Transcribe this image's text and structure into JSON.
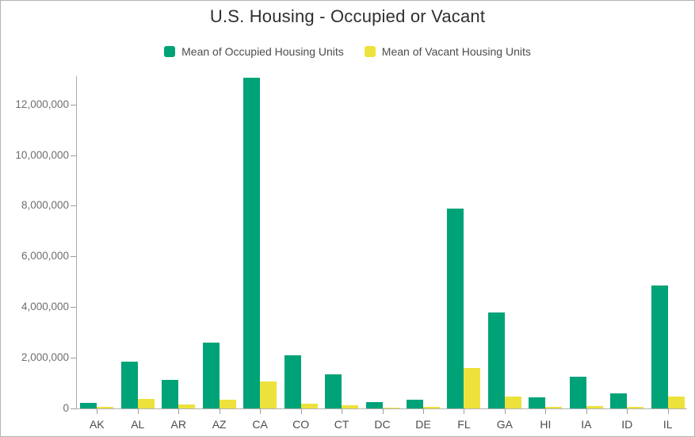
{
  "header": {
    "title": "U.S. Housing - Occupied or Vacant"
  },
  "legend": {
    "items": [
      {
        "label": "Mean of Occupied Housing Units",
        "color": "#00a278"
      },
      {
        "label": "Mean of Vacant Housing Units",
        "color": "#ede23c"
      }
    ]
  },
  "chart_data": {
    "type": "bar",
    "title": "U.S. Housing - Occupied or Vacant",
    "xlabel": "",
    "ylabel": "",
    "grid": false,
    "legend_position": "top",
    "categories": [
      "AK",
      "AL",
      "AR",
      "AZ",
      "CA",
      "CO",
      "CT",
      "DC",
      "DE",
      "FL",
      "GA",
      "HI",
      "IA",
      "ID",
      "IL"
    ],
    "series": [
      {
        "name": "Mean of Occupied Housing Units",
        "color": "#00a278",
        "values": [
          230000,
          1850000,
          1130000,
          2600000,
          13050000,
          2090000,
          1340000,
          245000,
          350000,
          7900000,
          3800000,
          425000,
          1240000,
          610000,
          4850000
        ]
      },
      {
        "name": "Mean of Vacant Housing Units",
        "color": "#ede23c",
        "values": [
          60000,
          360000,
          165000,
          345000,
          1060000,
          175000,
          115000,
          30000,
          70000,
          1600000,
          465000,
          55000,
          105000,
          55000,
          460000
        ]
      }
    ],
    "ylim": [
      0,
      13100000
    ],
    "y_ticks": [
      0,
      2000000,
      4000000,
      6000000,
      8000000,
      10000000,
      12000000
    ],
    "y_tick_labels": [
      "0",
      "2,000,000",
      "4,000,000",
      "6,000,000",
      "8,000,000",
      "10,000,000",
      "12,000,000"
    ]
  }
}
